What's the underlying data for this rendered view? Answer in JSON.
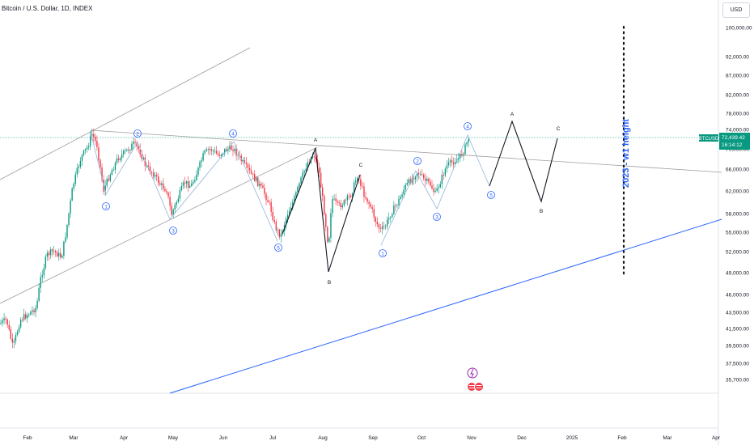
{
  "header": {
    "title": "Bitcoin / U.S. Dollar, 1D, INDEX",
    "currency_button": "USD"
  },
  "price_badge": {
    "symbol": "BTCUSD",
    "price": "72,439.42",
    "countdown": "16:14:12",
    "color": "#089981"
  },
  "annotation": {
    "text": "2023 - w1 height",
    "color": "#2962ff"
  },
  "colors": {
    "up": "#089981",
    "down": "#f23645",
    "channel": "#9e9e9e",
    "wave_blue": "#2962ff",
    "wave_black": "#131722"
  },
  "chart_data": {
    "type": "candlestick",
    "title": "Bitcoin / U.S. Dollar, 1D, INDEX",
    "xlabel": "",
    "ylabel": "",
    "y_scale": "log",
    "y_ticks": [
      "100,000.00",
      "92,000.00",
      "87,000.00",
      "82,000.00",
      "78,000.00",
      "74,000.00",
      "70,000.00",
      "66,000.00",
      "62,000.00",
      "58,000.00",
      "55,000.00",
      "52,000.00",
      "49,000.00",
      "46,000.00",
      "43,500.00",
      "41,500.00",
      "39,500.00",
      "37,500.00",
      "35,700.00"
    ],
    "x_ticks": [
      "Feb",
      "Mar",
      "Apr",
      "May",
      "Jun",
      "Jul",
      "Aug",
      "Sep",
      "Oct",
      "Nov",
      "Dec",
      "2025",
      "Feb",
      "Mar",
      "Apr"
    ],
    "last_price": 72439.42,
    "wave_labels": [
      {
        "label": "1",
        "date": "2024-03-19",
        "price": 61000
      },
      {
        "label": "2",
        "date": "2024-04-08",
        "price": 72500
      },
      {
        "label": "3",
        "date": "2024-05-01",
        "price": 56800
      },
      {
        "label": "4",
        "date": "2024-06-07",
        "price": 72000
      },
      {
        "label": "5",
        "date": "2024-07-05",
        "price": 53500
      },
      {
        "label": "A",
        "date": "2024-07-29",
        "price": 70000
      },
      {
        "label": "B",
        "date": "2024-08-05",
        "price": 49000
      },
      {
        "label": "C",
        "date": "2024-08-25",
        "price": 65000
      },
      {
        "label": "1",
        "date": "2024-09-06",
        "price": 53000
      },
      {
        "label": "2",
        "date": "2024-09-27",
        "price": 66500
      },
      {
        "label": "3",
        "date": "2024-10-10",
        "price": 59000
      },
      {
        "label": "4",
        "date": "2024-10-29",
        "price": 73500
      },
      {
        "label": "5",
        "date": "2024-11-11",
        "price": 63500
      },
      {
        "label": "A",
        "date": "2024-11-25",
        "price": 76000
      },
      {
        "label": "B",
        "date": "2024-12-17",
        "price": 60000
      },
      {
        "label": "C",
        "date": "2025-01-03",
        "price": 72000
      }
    ]
  }
}
